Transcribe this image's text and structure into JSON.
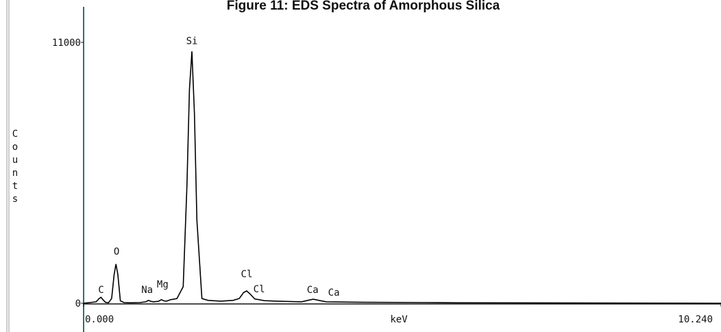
{
  "chart_data": {
    "type": "line",
    "title": "Figure 11: EDS Spectra of Amorphous Silica",
    "xlabel": "keV",
    "ylabel": "Counts",
    "x": [
      0,
      0.1,
      0.2,
      0.25,
      0.28,
      0.31,
      0.35,
      0.4,
      0.45,
      0.49,
      0.52,
      0.55,
      0.59,
      0.65,
      0.75,
      0.9,
      1.0,
      1.04,
      1.08,
      1.12,
      1.2,
      1.25,
      1.29,
      1.33,
      1.4,
      1.5,
      1.6,
      1.66,
      1.7,
      1.74,
      1.78,
      1.82,
      1.9,
      2.0,
      2.2,
      2.4,
      2.5,
      2.57,
      2.62,
      2.67,
      2.75,
      2.82,
      2.9,
      3.1,
      3.5,
      3.6,
      3.69,
      3.78,
      3.9,
      4.5,
      5.5,
      6.0,
      10.24
    ],
    "values": [
      0,
      30,
      60,
      200,
      250,
      150,
      40,
      20,
      200,
      1200,
      1650,
      1200,
      100,
      30,
      20,
      30,
      60,
      120,
      80,
      60,
      80,
      150,
      100,
      90,
      150,
      200,
      700,
      5000,
      9000,
      10620,
      8000,
      3500,
      200,
      120,
      90,
      120,
      200,
      450,
      520,
      400,
      180,
      150,
      110,
      90,
      60,
      120,
      170,
      120,
      60,
      40,
      30,
      20,
      0
    ],
    "color": "#000000",
    "xlim": [
      0,
      10.24
    ],
    "ylim": [
      0,
      12500
    ],
    "xticks": [
      {
        "value": 0,
        "label": "0.000"
      },
      {
        "value": 10.24,
        "label": "10.240"
      }
    ],
    "yticks": [
      0,
      11000
    ],
    "annotations": [
      {
        "text": "C",
        "x": 0.28,
        "y": 433
      },
      {
        "text": "O",
        "x": 0.53,
        "y": 2050
      },
      {
        "text": "Na",
        "x": 1.02,
        "y": 433
      },
      {
        "text": "Mg",
        "x": 1.27,
        "y": 660
      },
      {
        "text": "Si",
        "x": 1.74,
        "y": 10920
      },
      {
        "text": "Cl",
        "x": 2.62,
        "y": 1100
      },
      {
        "text": "Cl",
        "x": 2.82,
        "y": 460
      },
      {
        "text": "Ca",
        "x": 3.68,
        "y": 433
      },
      {
        "text": "Ca",
        "x": 4.02,
        "y": 320
      }
    ]
  }
}
